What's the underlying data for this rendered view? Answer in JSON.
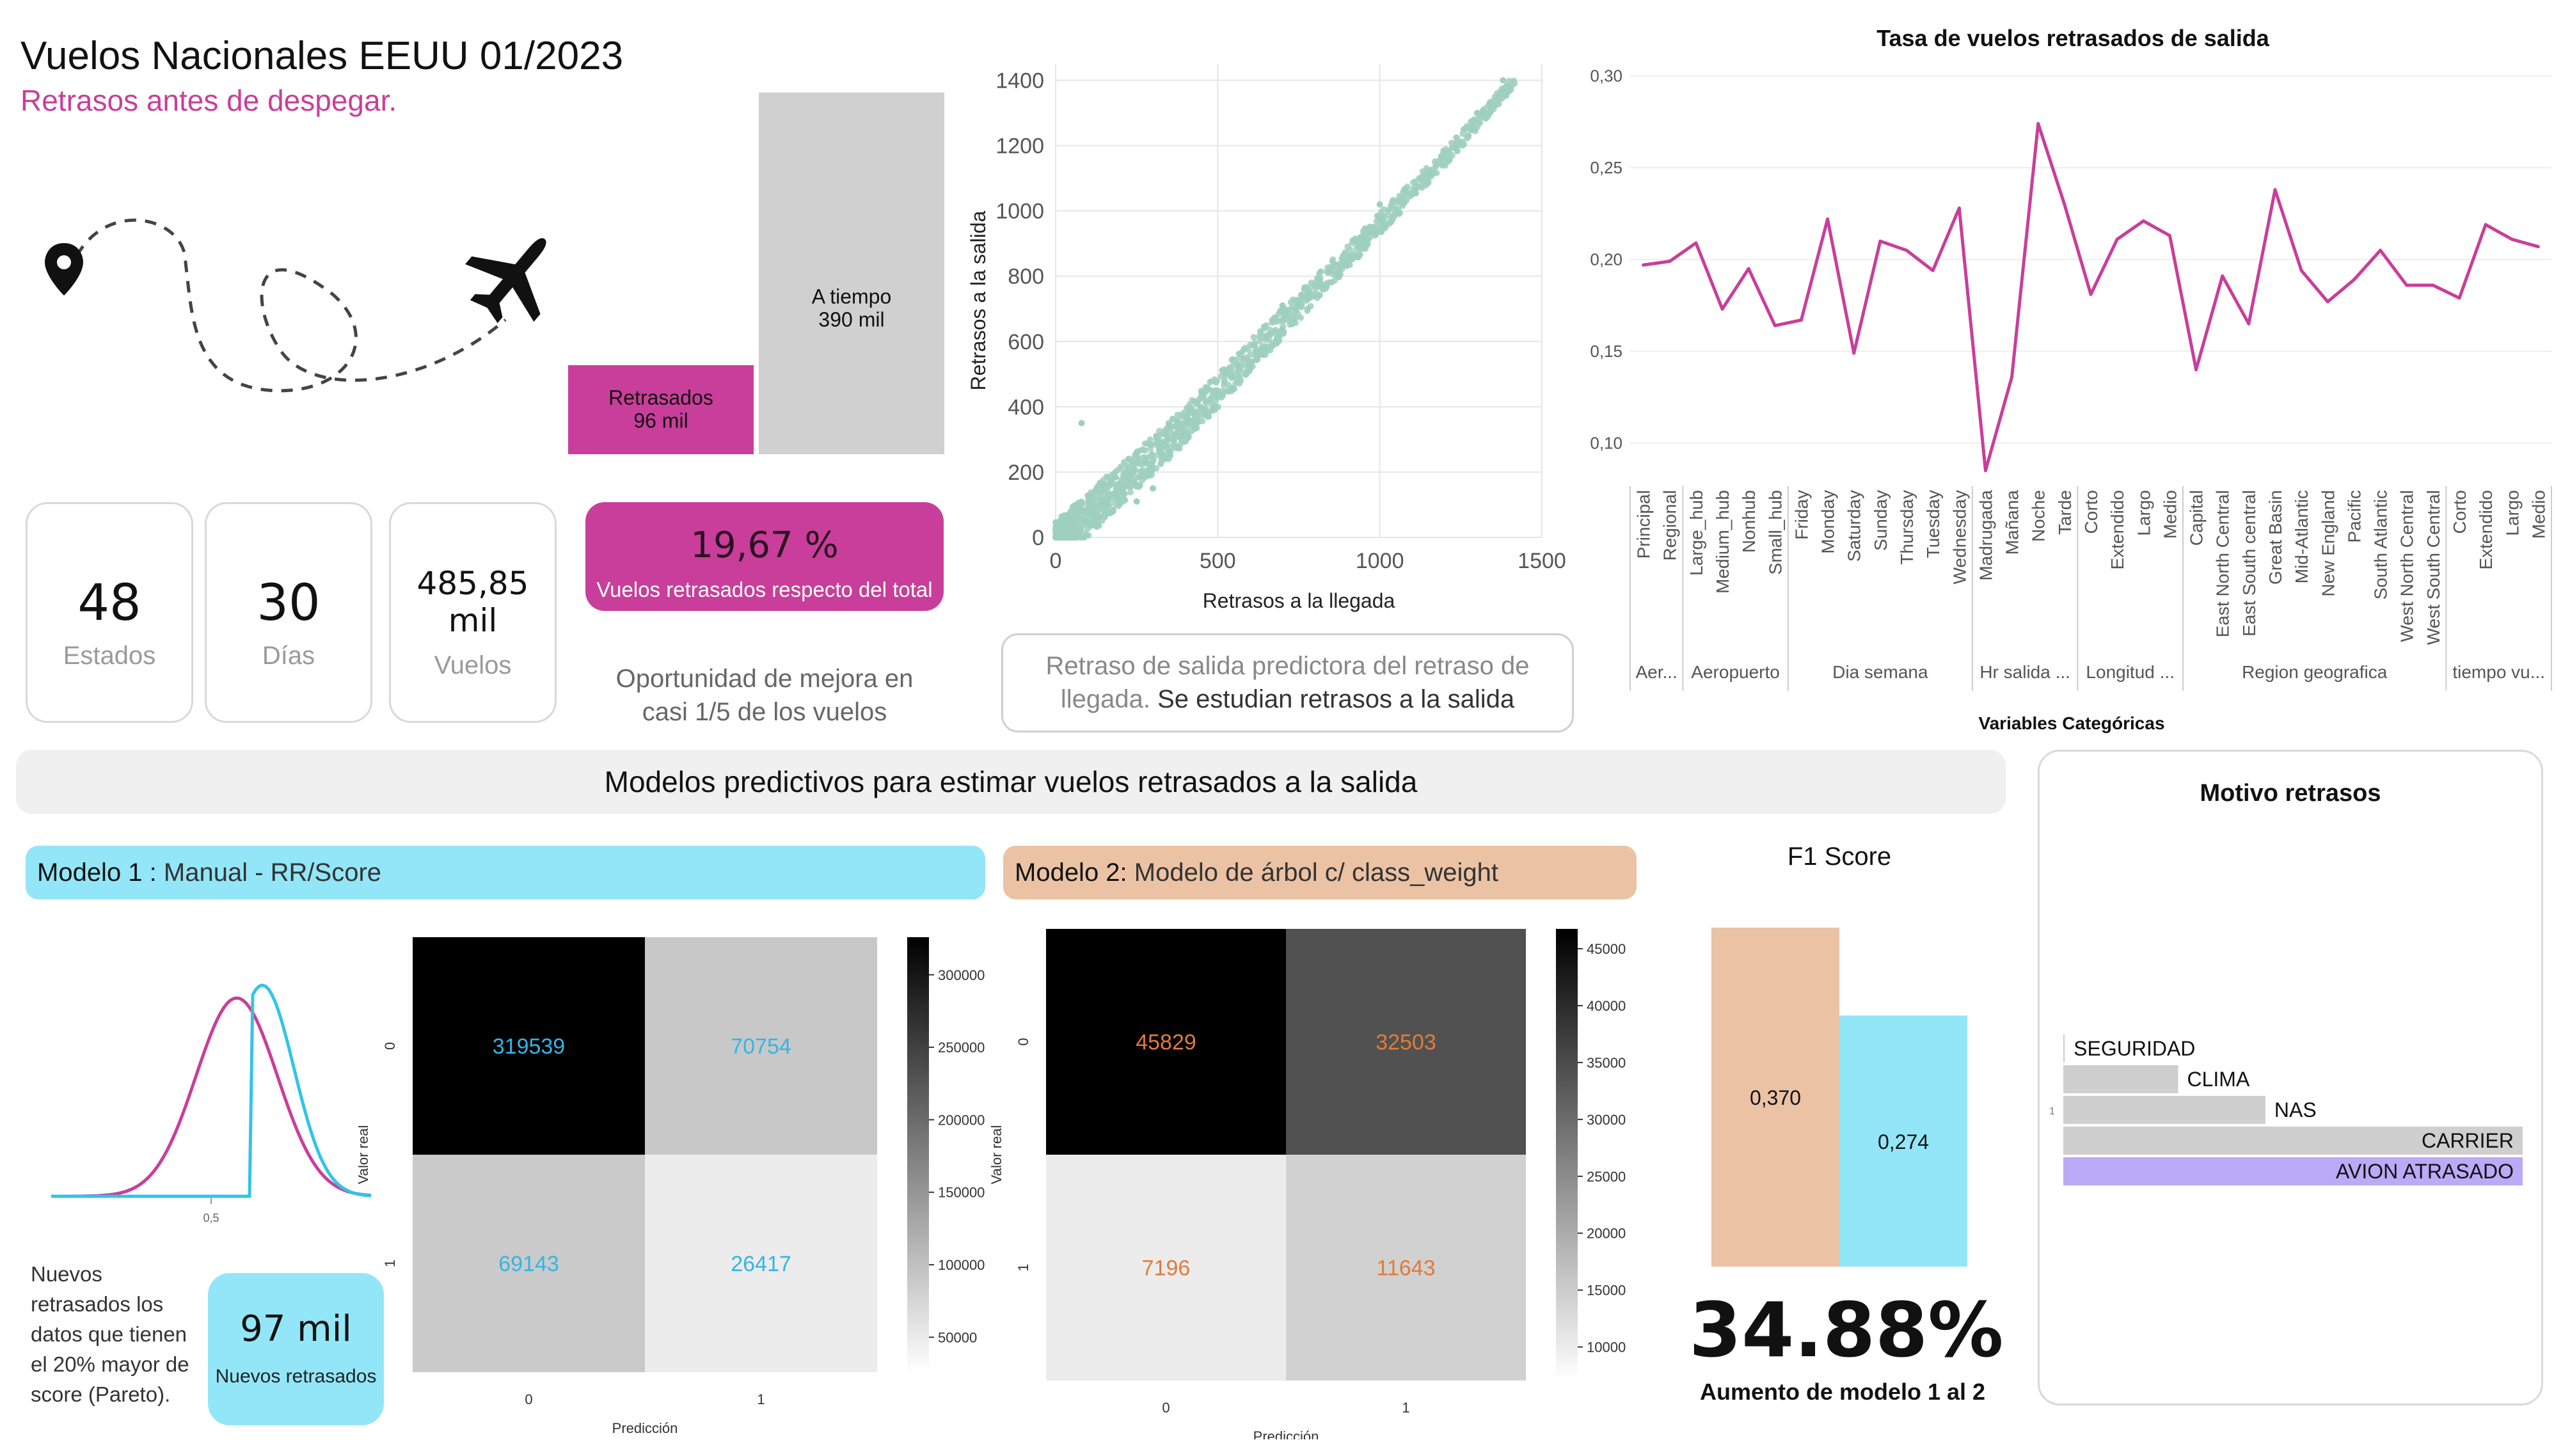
{
  "header": {
    "title": "Vuelos Nacionales EEUU 01/2023",
    "subtitle": "Retrasos antes de despegar."
  },
  "colors": {
    "magenta": "#c93e9a",
    "light_gray": "#d0d0d0",
    "mint": "#9fcfbe",
    "cyan": "#92e6f7",
    "peach": "#ebc2a4",
    "lavender": "#b9abf7"
  },
  "icons": [
    "location-pin-icon",
    "airplane-icon",
    "dashed-flight-path"
  ],
  "kpis": [
    {
      "value": "48",
      "label": "Estados"
    },
    {
      "value": "30",
      "label": "Días"
    },
    {
      "value": "485,85 mil",
      "label": "Vuelos"
    }
  ],
  "rate_kpi": {
    "value": "19,67 %",
    "label": "Vuelos retrasados respecto del total"
  },
  "opportunity_note": "Oportunidad de mejora en casi 1/5 de los vuelos",
  "predictor_note": {
    "part1": "Retraso de salida predictora del retraso de llegada.",
    "part2": " Se estudian retrasos a la salida"
  },
  "section_title": "Modelos predictivos para estimar vuelos retrasados a la salida",
  "model1": {
    "prefix": "Modelo 1 :",
    "text": " Manual - RR/Score"
  },
  "model2": {
    "prefix": "Modelo 2:",
    "text": " Modelo de árbol c/ class_weight"
  },
  "pareto_note": "Nuevos retrasados los datos que tienen el 20% mayor de score (Pareto).",
  "new_delayed_kpi": {
    "value": "97 mil",
    "label": "Nuevos retrasados"
  },
  "improvement": {
    "value": "34.88%",
    "label": "Aumento de modelo 1 al 2"
  },
  "chart_data": [
    {
      "id": "ontime_vs_delayed",
      "type": "bar",
      "categories": [
        "Retrasados",
        "A tiempo"
      ],
      "values": [
        96,
        390
      ],
      "data_labels": [
        "Retrasados\n96 mil",
        "A tiempo\n390 mil"
      ],
      "unit": "mil"
    },
    {
      "id": "scatter_arrival_departure",
      "type": "scatter",
      "xlabel": "Retrasos a la llegada",
      "ylabel": "Retrasos a la salida",
      "xlim": [
        0,
        1500
      ],
      "ylim": [
        0,
        1450
      ],
      "xticks": [
        0,
        500,
        1000,
        1500
      ],
      "yticks": [
        0,
        200,
        400,
        600,
        800,
        1000,
        1200,
        1400
      ],
      "grid": true,
      "trend": [
        [
          0,
          0
        ],
        [
          200,
          180
        ],
        [
          400,
          360
        ],
        [
          600,
          570
        ],
        [
          800,
          770
        ],
        [
          1000,
          970
        ],
        [
          1200,
          1170
        ],
        [
          1420,
          1410
        ]
      ],
      "outliers": [
        [
          80,
          350
        ],
        [
          1300,
          1300
        ],
        [
          1380,
          1400
        ],
        [
          1000,
          1020
        ],
        [
          700,
          710
        ],
        [
          300,
          150
        ],
        [
          250,
          110
        ]
      ]
    },
    {
      "id": "delay_rate_by_category",
      "type": "line",
      "title": "Tasa de vuelos retrasados de salida",
      "xlabel": "Variables Categóricas",
      "ylim": [
        0.08,
        0.31
      ],
      "yticks": [
        0.1,
        0.15,
        0.2,
        0.25,
        0.3
      ],
      "ytick_labels": [
        "0,10",
        "0,15",
        "0,20",
        "0,25",
        "0,30"
      ],
      "categories": [
        "Principal",
        "Regional",
        "Large_hub",
        "Medium_hub",
        "Nonhub",
        "Small_hub",
        "Friday",
        "Monday",
        "Saturday",
        "Sunday",
        "Thursday",
        "Tuesday",
        "Wednesday",
        "Madrugada",
        "Mañana",
        "Noche",
        "Tarde",
        "Corto",
        "Extendido",
        "Largo",
        "Medio",
        "Capital",
        "East North Central",
        "East South central",
        "Great Basin",
        "Mid-Atlantic",
        "New England",
        "Pacific",
        "South Atlantic",
        "West North Central",
        "West South Central",
        "Corto",
        "Extendido",
        "Largo",
        "Medio"
      ],
      "values": [
        0.197,
        0.199,
        0.209,
        0.173,
        0.195,
        0.164,
        0.167,
        0.222,
        0.149,
        0.21,
        0.205,
        0.194,
        0.228,
        0.085,
        0.136,
        0.274,
        0.23,
        0.181,
        0.211,
        0.221,
        0.213,
        0.14,
        0.191,
        0.165,
        0.238,
        0.194,
        0.177,
        0.189,
        0.205,
        0.186,
        0.186,
        0.179,
        0.219,
        0.211,
        0.207
      ],
      "groups": [
        {
          "label": "Aer...",
          "count": 2
        },
        {
          "label": "Aeropuerto",
          "count": 4
        },
        {
          "label": "Dia semana",
          "count": 7
        },
        {
          "label": "Hr salida ...",
          "count": 4
        },
        {
          "label": "Longitud ...",
          "count": 4
        },
        {
          "label": "Region geografica",
          "count": 10
        },
        {
          "label": "tiempo vu...",
          "count": 4
        }
      ]
    },
    {
      "id": "model1_score_distribution",
      "type": "line",
      "xticks": [
        "0,5"
      ],
      "series": [
        {
          "color": "#c93e9a",
          "shape": "bell"
        },
        {
          "color": "#33c3ea",
          "shape": "truncated_bell"
        }
      ]
    },
    {
      "id": "confusion_matrix_model1",
      "type": "heatmap",
      "xlabel": "Predicción",
      "ylabel": "Valor real",
      "xticks": [
        "0",
        "1"
      ],
      "yticks": [
        "0",
        "1"
      ],
      "values": [
        [
          319539,
          70754
        ],
        [
          69143,
          26417
        ]
      ],
      "vmin": 26417,
      "vmax": 319539,
      "colorbar_ticks": [
        50000,
        100000,
        150000,
        200000,
        250000,
        300000
      ],
      "label_color": "#33b5e5"
    },
    {
      "id": "confusion_matrix_model2",
      "type": "heatmap",
      "xlabel": "Predicción",
      "ylabel": "Valor real",
      "xticks": [
        "0",
        "1"
      ],
      "yticks": [
        "0",
        "1"
      ],
      "values": [
        [
          45829,
          32503
        ],
        [
          7196,
          11643
        ]
      ],
      "vmin": 7196,
      "vmax": 45829,
      "colorbar_ticks": [
        10000,
        15000,
        20000,
        25000,
        30000,
        35000,
        40000,
        45000
      ],
      "label_color": "#e07b39"
    },
    {
      "id": "f1_score",
      "type": "bar",
      "title": "F1 Score",
      "categories": [
        "Modelo 2",
        "Modelo 1"
      ],
      "values": [
        0.37,
        0.274
      ],
      "data_labels": [
        "0,370",
        "0,274"
      ],
      "colors": [
        "#ebc2a4",
        "#92e6f7"
      ]
    },
    {
      "id": "delay_reasons",
      "type": "bar",
      "orientation": "horizontal",
      "title": "Motivo retrasos",
      "axis_label": "1",
      "categories": [
        "SEGURIDAD",
        "CLIMA",
        "NAS",
        "CARRIER",
        "AVION ATRASADO"
      ],
      "values": [
        0.3,
        25,
        44,
        100,
        100
      ],
      "highlight": "AVION ATRASADO"
    }
  ]
}
